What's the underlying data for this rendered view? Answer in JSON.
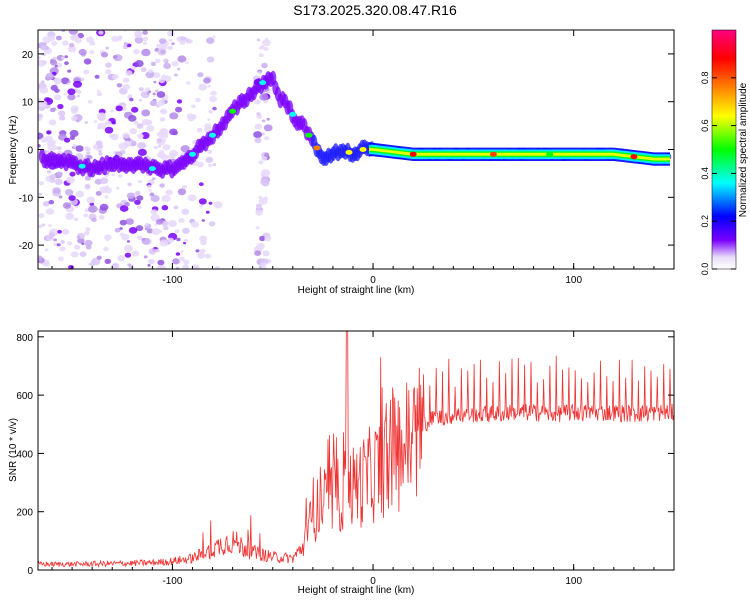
{
  "title": "S173.2025.320.08.47.R16",
  "chart_data": [
    {
      "type": "heatmap",
      "name": "spectrogram",
      "xlabel": "Height of straight line (km)",
      "ylabel": "Frequency (Hz)",
      "xlim": [
        -167,
        150
      ],
      "ylim": [
        -25,
        25
      ],
      "x_ticks": [
        -100,
        0,
        100
      ],
      "y_ticks": [
        20,
        10,
        0,
        -10,
        -20
      ],
      "colorbar": {
        "label": "Normalized spectral amplitude",
        "range": [
          0,
          1
        ],
        "ticks": [
          0.0,
          0.2,
          0.4,
          0.6,
          0.8
        ],
        "colors": [
          "#e8dcf8",
          "#7a00ff",
          "#0000ff",
          "#00ffff",
          "#00ff00",
          "#ffff00",
          "#ff8000",
          "#ff0000",
          "#ff0080"
        ]
      },
      "ridge": {
        "x": [
          -160,
          -150,
          -140,
          -130,
          -120,
          -110,
          -100,
          -95,
          -90,
          -85,
          -80,
          -75,
          -70,
          -65,
          -60,
          -55,
          -50,
          -47,
          -44,
          -41,
          -38,
          -35,
          -32,
          -29,
          -26,
          -23,
          -20,
          -15,
          -10,
          -5,
          0,
          20,
          40,
          60,
          80,
          100,
          120,
          140,
          147
        ],
        "y": [
          -2,
          -3,
          -4,
          -3,
          -3,
          -4,
          -4,
          -3,
          -1,
          1,
          3,
          5,
          8,
          10,
          12,
          14,
          15,
          11,
          10,
          8,
          6,
          5,
          3,
          1,
          -1,
          -2,
          -1,
          0,
          -1,
          0,
          0,
          -1,
          -1,
          -1,
          -1,
          -1,
          -1,
          -2,
          -2
        ]
      }
    },
    {
      "type": "line",
      "name": "snr",
      "xlabel": "Height of straight line (km)",
      "ylabel": "SNR (10 * v/v)",
      "xlim": [
        -167,
        150
      ],
      "ylim": [
        0,
        820
      ],
      "x_ticks": [
        -100,
        0,
        100
      ],
      "y_ticks": [
        0,
        200,
        400,
        600,
        800
      ],
      "color": "#ee3333",
      "x": [
        -167,
        -150,
        -130,
        -110,
        -100,
        -90,
        -80,
        -75,
        -70,
        -60,
        -50,
        -40,
        -35,
        -30,
        -25,
        -20,
        -15,
        -13,
        -10,
        -5,
        0,
        5,
        10,
        15,
        20,
        25,
        30,
        40,
        50,
        60,
        70,
        80,
        90,
        100,
        110,
        120,
        130,
        140,
        150
      ],
      "y": [
        20,
        20,
        22,
        25,
        30,
        40,
        70,
        90,
        100,
        60,
        45,
        40,
        80,
        200,
        240,
        260,
        280,
        300,
        300,
        320,
        350,
        380,
        420,
        450,
        480,
        510,
        530,
        540,
        545,
        545,
        550,
        550,
        545,
        550,
        550,
        550,
        545,
        550,
        550
      ]
    }
  ]
}
